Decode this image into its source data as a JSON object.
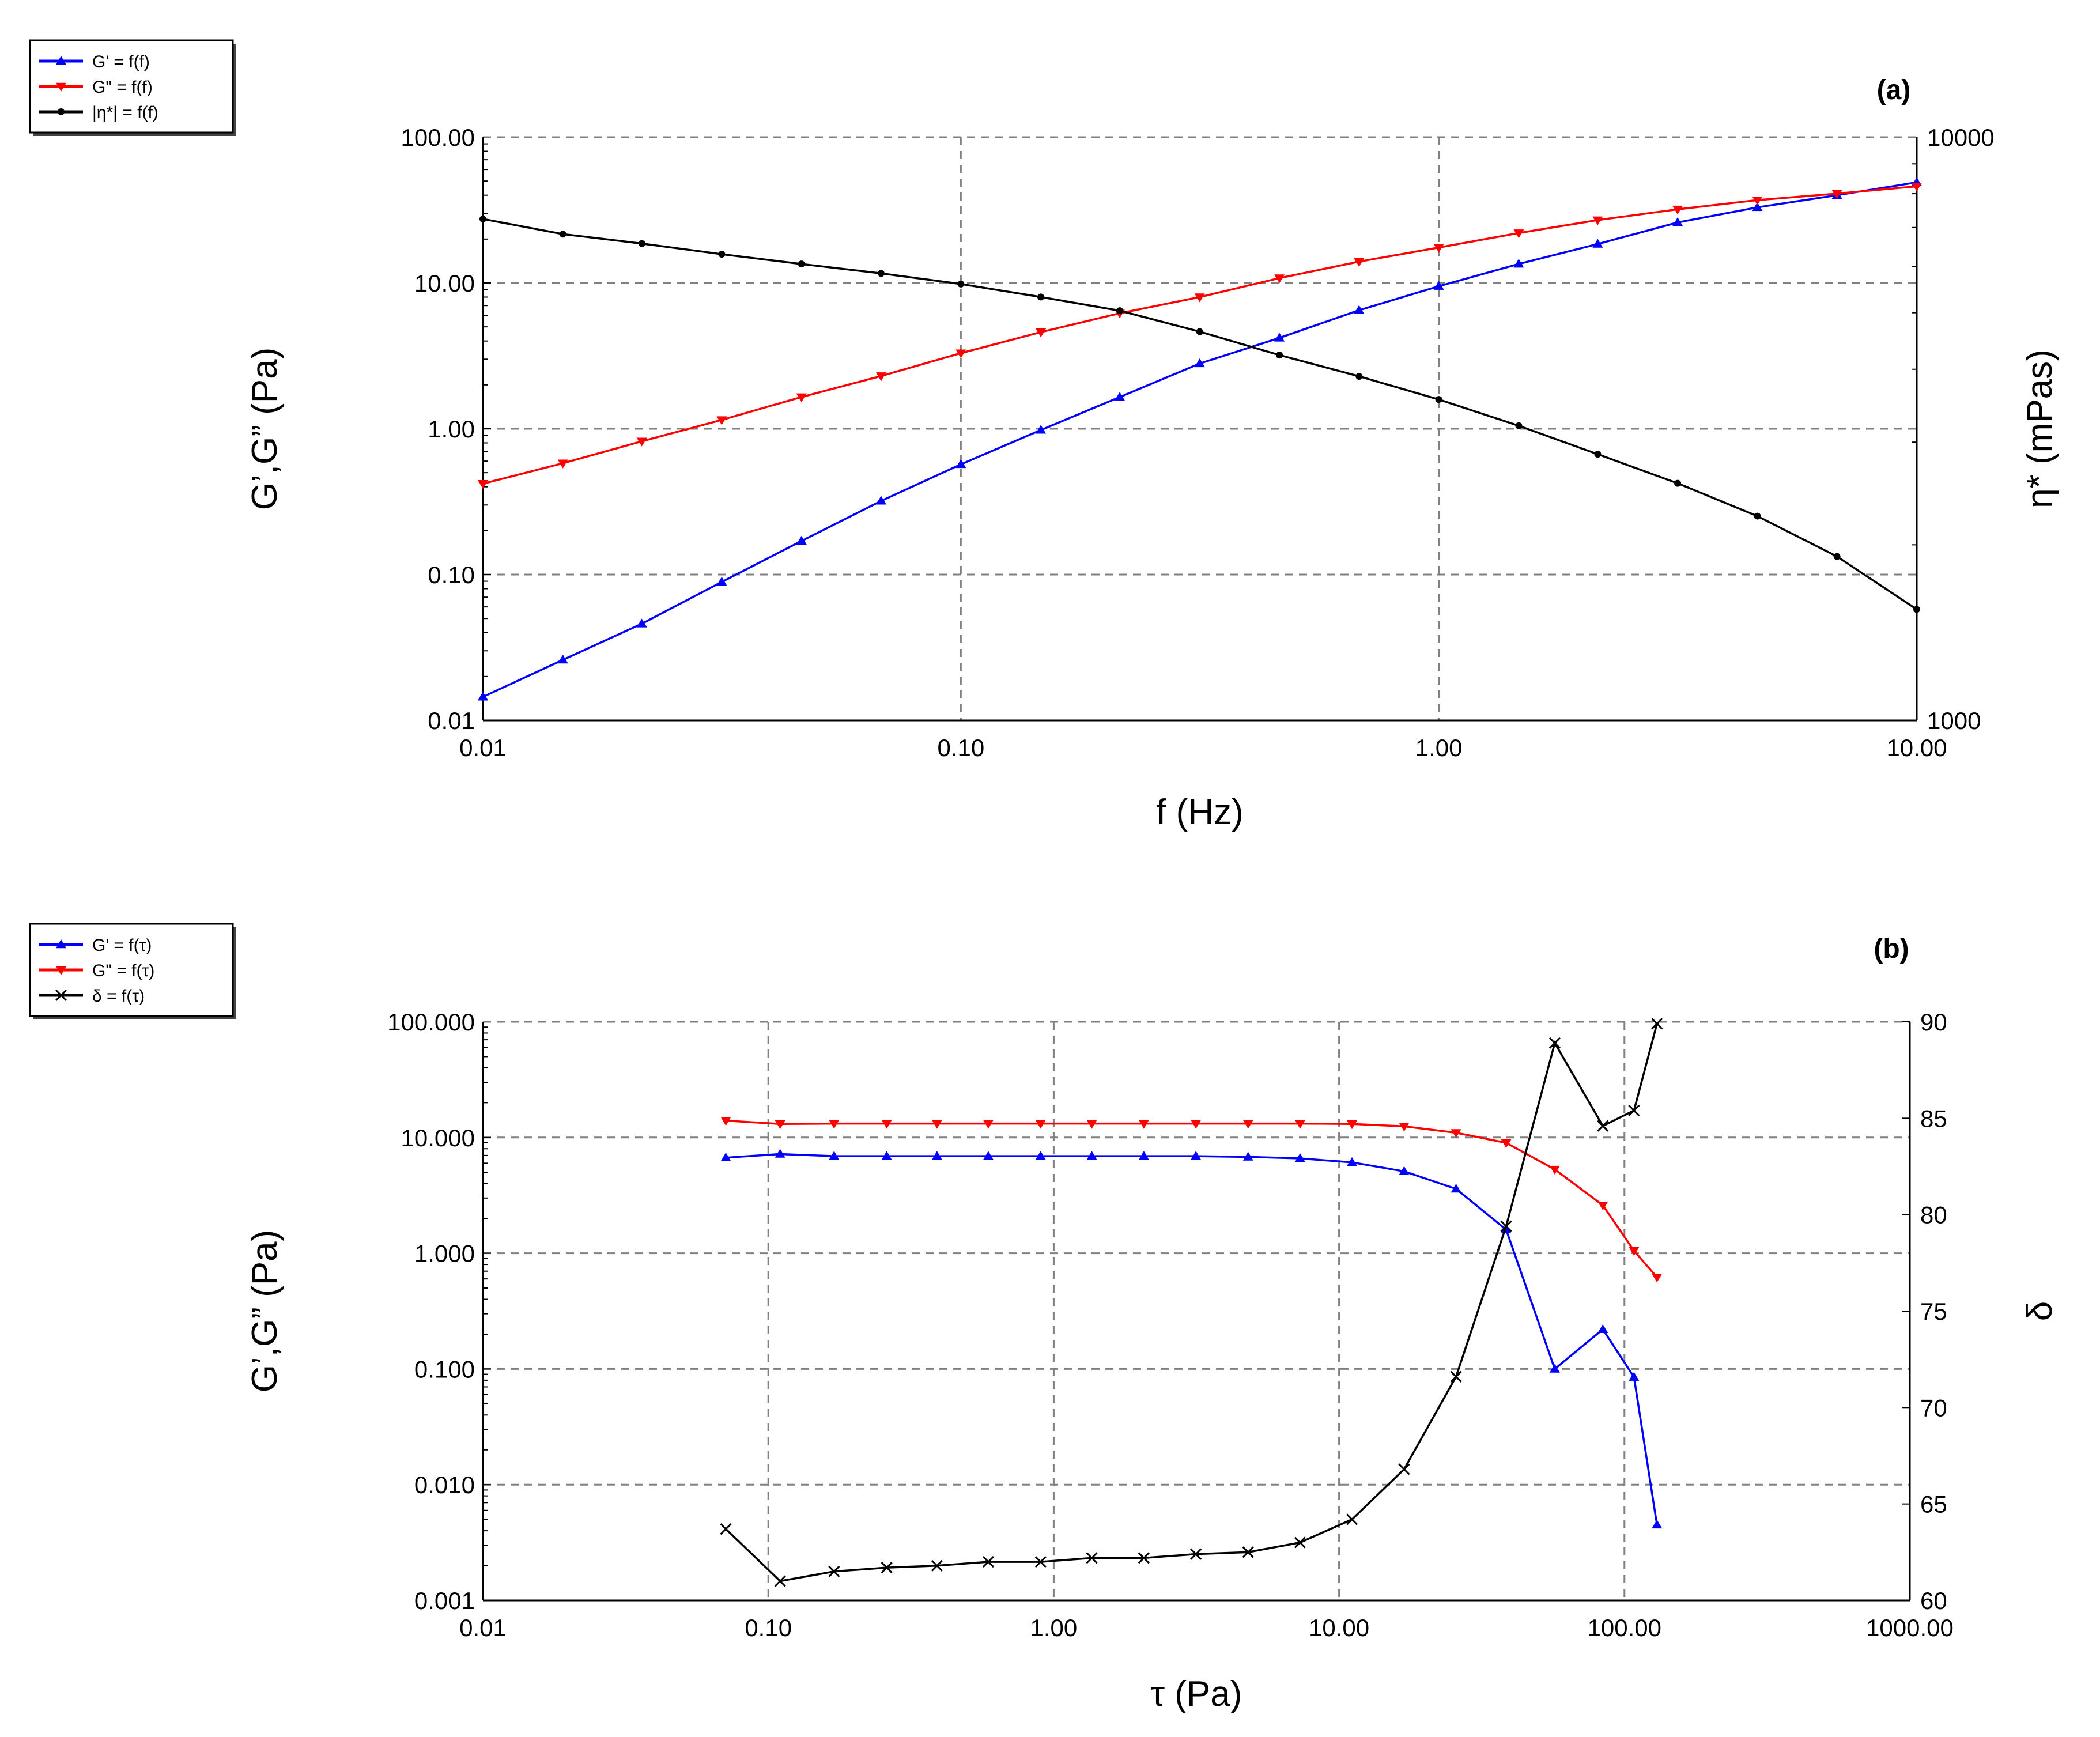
{
  "chart_data": [
    {
      "type": "line",
      "panel_label": "(a)",
      "xlabel": "f (Hz)",
      "ylabel": "G’,G” (Pa)",
      "y2label": "η* (mPas)",
      "xscale": "log",
      "yscale": "log",
      "y2scale": "log",
      "xlim": [
        0.01,
        10
      ],
      "ylim": [
        0.01,
        100
      ],
      "y2lim": [
        1000,
        10000
      ],
      "x_ticks": [
        "0.01",
        "0.10",
        "1.00",
        "10.00"
      ],
      "y_ticks": [
        "0.01",
        "0.10",
        "1.00",
        "10.00",
        "100.00"
      ],
      "y2_ticks": [
        "1000",
        "10000"
      ],
      "grid": true,
      "legend_position": "top-left-outside",
      "series": [
        {
          "name": "G' = f(f)",
          "axis": "left",
          "color": "#0000ff",
          "marker": "triangle-up",
          "x": [
            0.01,
            0.0147,
            0.0215,
            0.0316,
            0.0464,
            0.0681,
            0.1,
            0.147,
            0.215,
            0.316,
            0.464,
            0.681,
            1.0,
            1.47,
            2.15,
            3.16,
            4.64,
            6.81,
            10.0
          ],
          "y": [
            0.0145,
            0.026,
            0.046,
            0.089,
            0.17,
            0.32,
            0.57,
            0.98,
            1.65,
            2.8,
            4.2,
            6.5,
            9.5,
            13.5,
            18.5,
            26,
            33,
            40,
            49
          ]
        },
        {
          "name": "G\" = f(f)",
          "axis": "left",
          "color": "#ff0000",
          "marker": "triangle-down",
          "x": [
            0.01,
            0.0147,
            0.0215,
            0.0316,
            0.0464,
            0.0681,
            0.1,
            0.147,
            0.215,
            0.316,
            0.464,
            0.681,
            1.0,
            1.47,
            2.15,
            3.16,
            4.64,
            6.81,
            10.0
          ],
          "y": [
            0.42,
            0.58,
            0.82,
            1.15,
            1.65,
            2.3,
            3.3,
            4.6,
            6.2,
            8.0,
            10.8,
            14.0,
            17.5,
            22,
            27,
            32,
            37,
            41,
            46
          ]
        },
        {
          "name": "|η*| = f(f)",
          "axis": "right",
          "color": "#000000",
          "marker": "dot",
          "x": [
            0.01,
            0.0147,
            0.0215,
            0.0316,
            0.0464,
            0.0681,
            0.1,
            0.147,
            0.215,
            0.316,
            0.464,
            0.681,
            1.0,
            1.47,
            2.15,
            3.16,
            4.64,
            6.81,
            10.0
          ],
          "y": [
            7240,
            6820,
            6570,
            6300,
            6060,
            5840,
            5600,
            5320,
            5040,
            4640,
            4230,
            3890,
            3550,
            3200,
            2860,
            2550,
            2240,
            1910,
            1550
          ]
        }
      ]
    },
    {
      "type": "line",
      "panel_label": "(b)",
      "xlabel": "τ (Pa)",
      "ylabel": "G’,G” (Pa)",
      "y2label": "δ",
      "xscale": "log",
      "yscale": "log",
      "y2scale": "linear",
      "xlim": [
        0.01,
        1000
      ],
      "ylim": [
        0.001,
        100
      ],
      "y2lim": [
        60,
        90
      ],
      "x_ticks": [
        "0.01",
        "0.10",
        "1.00",
        "10.00",
        "100.00",
        "1000.00"
      ],
      "y_ticks": [
        "0.001",
        "0.010",
        "0.100",
        "1.000",
        "10.000",
        "100.000"
      ],
      "y2_ticks": [
        "60",
        "65",
        "70",
        "75",
        "80",
        "85",
        "90"
      ],
      "grid": true,
      "legend_position": "top-left-outside",
      "series": [
        {
          "name": "G' = f(τ)",
          "axis": "left",
          "color": "#0000ff",
          "marker": "triangle-up",
          "x": [
            0.071,
            0.11,
            0.17,
            0.26,
            0.39,
            0.59,
            0.9,
            1.36,
            2.07,
            3.15,
            4.8,
            7.3,
            11.1,
            16.9,
            25.7,
            38.5,
            57,
            84,
            108,
            130
          ],
          "y": [
            6.7,
            7.2,
            6.9,
            6.9,
            6.9,
            6.9,
            6.9,
            6.9,
            6.9,
            6.9,
            6.8,
            6.6,
            6.1,
            5.1,
            3.6,
            1.6,
            0.1,
            0.22,
            0.085,
            0.0045
          ]
        },
        {
          "name": "G\" = f(τ)",
          "axis": "left",
          "color": "#ff0000",
          "marker": "triangle-down",
          "x": [
            0.071,
            0.11,
            0.17,
            0.26,
            0.39,
            0.59,
            0.9,
            1.36,
            2.07,
            3.15,
            4.8,
            7.3,
            11.1,
            16.9,
            25.7,
            38.5,
            57,
            84,
            108,
            130
          ],
          "y": [
            14,
            13.1,
            13.2,
            13.2,
            13.2,
            13.2,
            13.2,
            13.2,
            13.2,
            13.2,
            13.2,
            13.2,
            13.1,
            12.5,
            11,
            9,
            5.3,
            2.6,
            1.05,
            0.62
          ]
        },
        {
          "name": "δ = f(τ)",
          "axis": "right",
          "color": "#000000",
          "marker": "cross",
          "x": [
            0.071,
            0.11,
            0.17,
            0.26,
            0.39,
            0.59,
            0.9,
            1.36,
            2.07,
            3.15,
            4.8,
            7.3,
            11.1,
            16.9,
            25.7,
            38.5,
            57,
            84,
            108,
            130
          ],
          "y": [
            63.7,
            61.0,
            61.5,
            61.7,
            61.8,
            62.0,
            62.0,
            62.2,
            62.2,
            62.4,
            62.5,
            63.0,
            64.2,
            66.8,
            71.6,
            79.4,
            88.9,
            84.6,
            85.4,
            89.9
          ]
        }
      ]
    }
  ]
}
